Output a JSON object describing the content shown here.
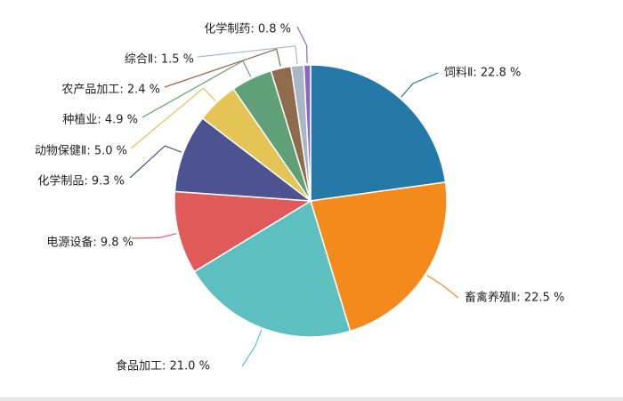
{
  "chart_data": {
    "type": "pie",
    "title": "",
    "categories": [
      "饲料Ⅱ",
      "畜禽养殖Ⅱ",
      "食品加工",
      "电源设备",
      "化学制品",
      "动物保健Ⅱ",
      "种植业",
      "农产品加工",
      "综合Ⅱ",
      "化学制药"
    ],
    "values": [
      22.8,
      22.5,
      21.0,
      9.8,
      9.3,
      5.0,
      4.9,
      2.4,
      1.5,
      0.8
    ],
    "unit": "%",
    "labels": [
      "饲料Ⅱ: 22.8 %",
      "畜禽养殖Ⅱ: 22.5 %",
      "食品加工: 21.0 %",
      "电源设备: 9.8 %",
      "化学制品: 9.3 %",
      "动物保健Ⅱ: 5.0 %",
      "种植业: 4.9 %",
      "农产品加工: 2.4 %",
      "综合Ⅱ: 1.5 %",
      "化学制药: 0.8 %"
    ],
    "colors": [
      "#2479a8",
      "#f48a1c",
      "#5dbfbf",
      "#e05a5a",
      "#4c5390",
      "#e3c455",
      "#5fa078",
      "#8f6b4e",
      "#a9b6c6",
      "#8e65c3"
    ],
    "start_angle": "12 o'clock",
    "direction": "clockwise",
    "legend": "none (callout labels)"
  }
}
